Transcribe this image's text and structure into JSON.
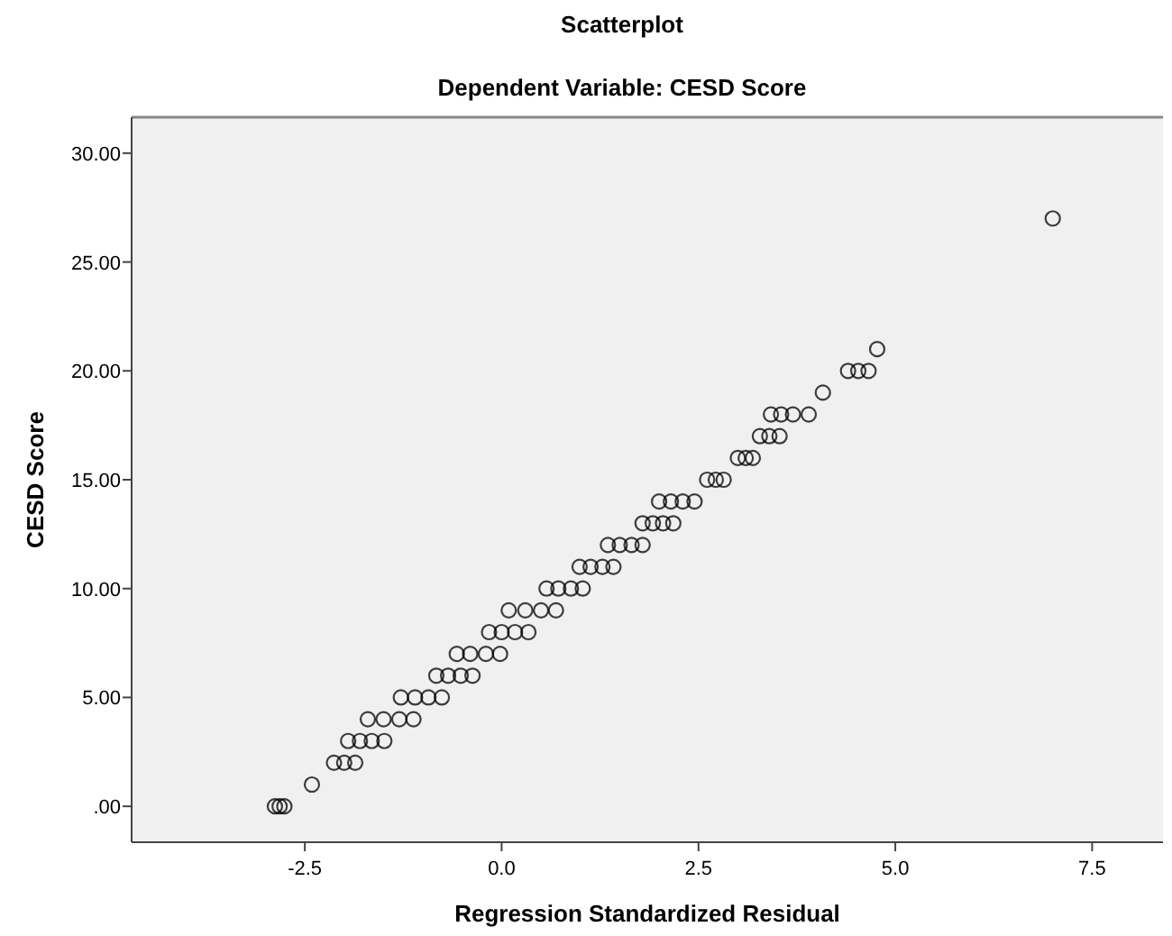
{
  "chart_data": {
    "type": "scatter",
    "title": "Scatterplot",
    "subtitle": "Dependent Variable: CESD Score",
    "xlabel": "Regression Standardized Residual",
    "ylabel": "CESD Score",
    "xlim": [
      -4.7,
      8.4
    ],
    "ylim": [
      -1.65,
      31.65
    ],
    "xticks": [
      -2.5,
      {
        "value": 0,
        "label": "0.0"
      },
      2.5,
      {
        "value": 5,
        "label": "5.0"
      },
      7.5
    ],
    "yticks": [
      {
        "value": 0,
        "label": ".00"
      },
      {
        "value": 5,
        "label": "5.00"
      },
      {
        "value": 10,
        "label": "10.00"
      },
      {
        "value": 15,
        "label": "15.00"
      },
      {
        "value": 20,
        "label": "20.00"
      },
      {
        "value": 25,
        "label": "25.00"
      },
      {
        "value": 30,
        "label": "30.00"
      }
    ],
    "grid": false,
    "marker": "circle",
    "series": [
      {
        "color": "#000000",
        "x": [
          -2.88,
          -2.82,
          -2.76,
          -2.41,
          -2.13,
          -2.0,
          -1.86,
          -1.95,
          -1.8,
          -1.65,
          -1.49,
          -1.7,
          -1.5,
          -1.3,
          -1.12,
          -1.28,
          -1.1,
          -0.93,
          -0.76,
          -0.83,
          -0.68,
          -0.52,
          -0.37,
          -0.57,
          -0.4,
          -0.2,
          -0.02,
          -0.16,
          0.0,
          0.17,
          0.34,
          0.09,
          0.3,
          0.5,
          0.69,
          0.57,
          0.72,
          0.88,
          1.03,
          0.99,
          1.13,
          1.28,
          1.42,
          1.35,
          1.5,
          1.65,
          1.79,
          1.79,
          1.92,
          2.05,
          2.18,
          2.0,
          2.15,
          2.3,
          2.45,
          2.61,
          2.72,
          2.82,
          3.0,
          3.1,
          3.19,
          3.28,
          3.4,
          3.53,
          3.42,
          3.55,
          3.7,
          3.9,
          4.08,
          4.4,
          4.53,
          4.66,
          4.77,
          7.0
        ],
        "values": [
          0,
          0,
          0,
          1,
          2,
          2,
          2,
          3,
          3,
          3,
          3,
          4,
          4,
          4,
          4,
          5,
          5,
          5,
          5,
          6,
          6,
          6,
          6,
          7,
          7,
          7,
          7,
          8,
          8,
          8,
          8,
          9,
          9,
          9,
          9,
          10,
          10,
          10,
          10,
          11,
          11,
          11,
          11,
          12,
          12,
          12,
          12,
          13,
          13,
          13,
          13,
          14,
          14,
          14,
          14,
          15,
          15,
          15,
          16,
          16,
          16,
          17,
          17,
          17,
          18,
          18,
          18,
          18,
          19,
          20,
          20,
          20,
          21,
          27
        ]
      }
    ]
  }
}
